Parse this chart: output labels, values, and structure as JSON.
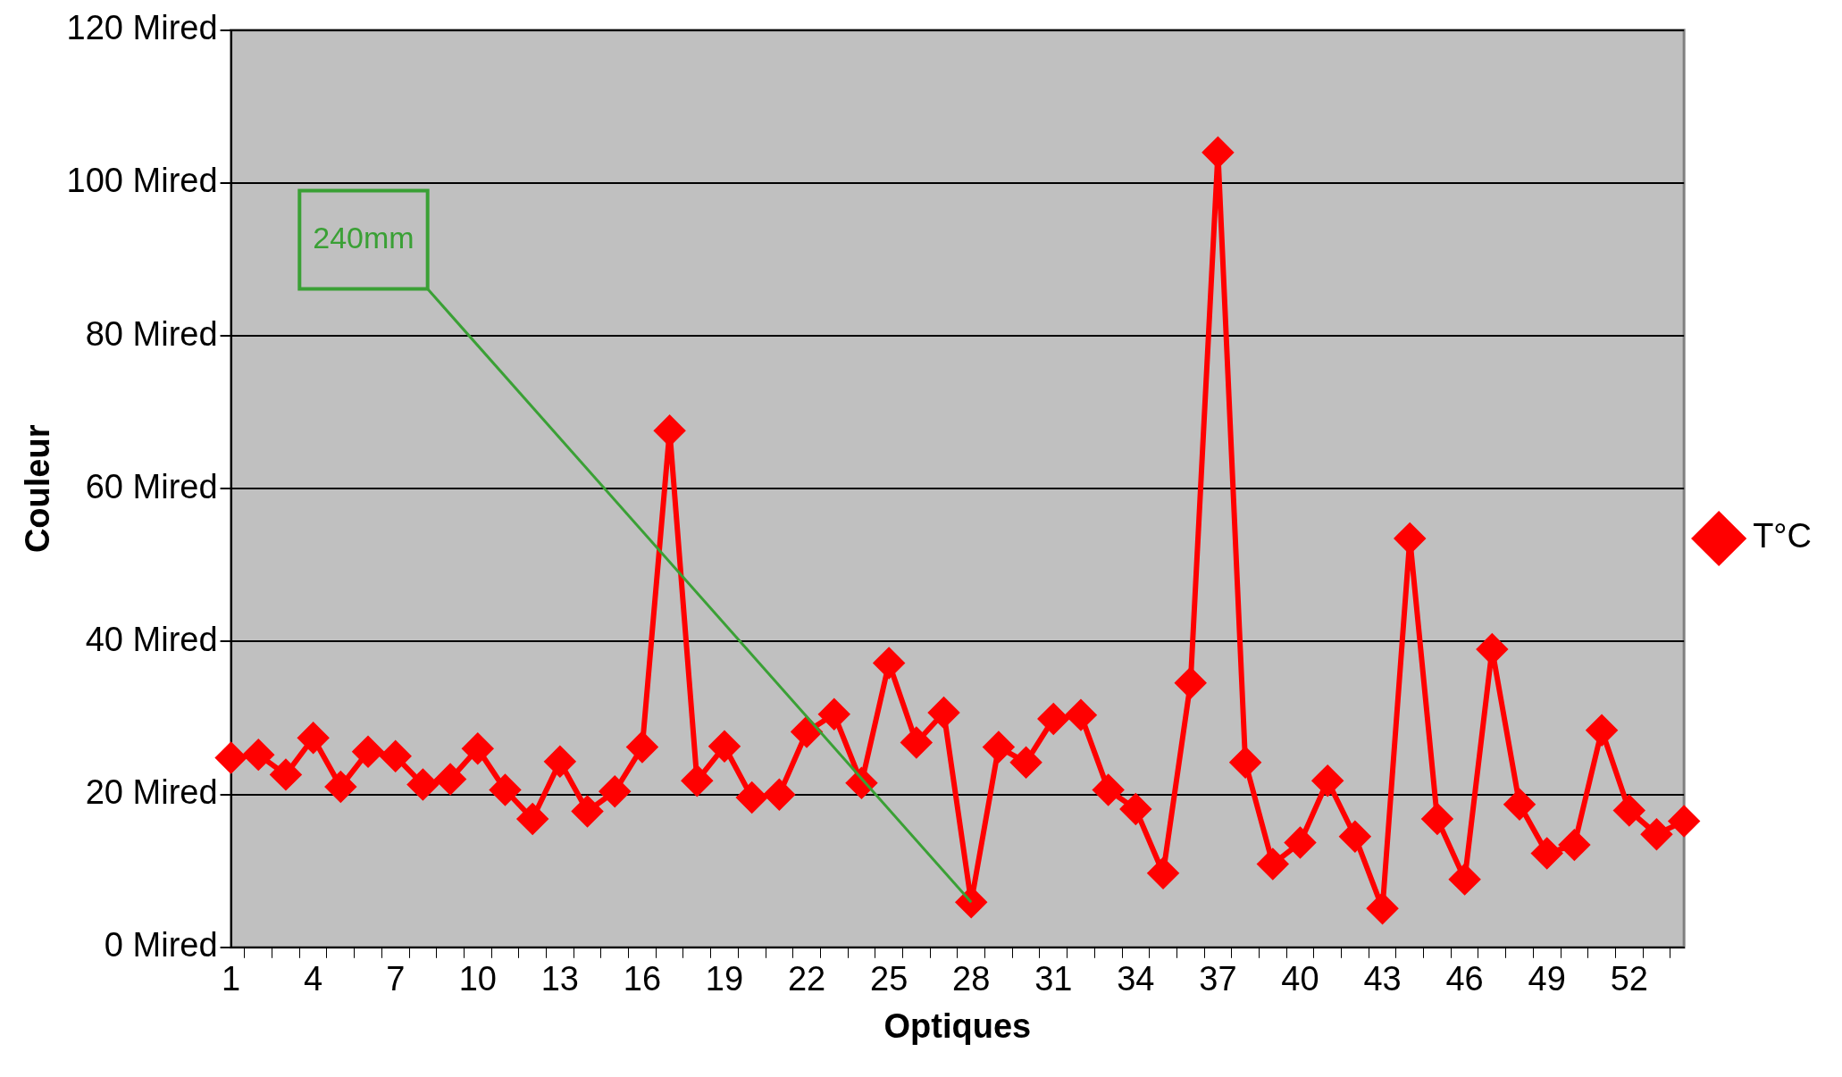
{
  "chart_data": {
    "type": "line",
    "xlabel": "Optiques",
    "ylabel": "Couleur",
    "categories": [
      "1",
      null,
      null,
      "4",
      null,
      null,
      "7",
      null,
      null,
      "10",
      null,
      null,
      "13",
      null,
      null,
      "16",
      null,
      null,
      "19",
      null,
      null,
      "22",
      null,
      null,
      "25",
      null,
      null,
      "28",
      null,
      null,
      "31",
      null,
      null,
      "34",
      null,
      null,
      "37",
      null,
      null,
      "40",
      null,
      null,
      "43",
      null,
      null,
      "46",
      null,
      null,
      "49",
      null,
      null,
      "52",
      null,
      null
    ],
    "series": [
      {
        "name": "T°C",
        "color": "#ff0000",
        "values": [
          24.8,
          25.2,
          22.6,
          27.4,
          21,
          25.6,
          25,
          21.3,
          22,
          26,
          20.6,
          16.8,
          24.3,
          17.8,
          20.4,
          26.2,
          67.6,
          21.8,
          26.3,
          19.6,
          20,
          28.2,
          30.5,
          21.5,
          37.2,
          26.8,
          30.7,
          5.9,
          26.2,
          24.2,
          29.9,
          30.4,
          20.6,
          18.1,
          9.7,
          34.6,
          104,
          24.2,
          10.9,
          13.7,
          21.8,
          14.5,
          5.1,
          53.5,
          16.8,
          8.9,
          39,
          18.7,
          12.3,
          13.4,
          28.4,
          17.9,
          14.8,
          16.5
        ]
      }
    ],
    "ylim": [
      0,
      120
    ],
    "yticks": [
      {
        "value": 0,
        "label": "0 Mired"
      },
      {
        "value": 20,
        "label": "20 Mired"
      },
      {
        "value": 40,
        "label": "40 Mired"
      },
      {
        "value": 60,
        "label": "60 Mired"
      },
      {
        "value": 80,
        "label": "80 Mired"
      },
      {
        "value": 100,
        "label": "100 Mired"
      },
      {
        "value": 120,
        "label": "120 Mired"
      }
    ],
    "grid": "y",
    "legend": "right",
    "marker": "diamond",
    "line_style": "solid",
    "annotations": [
      {
        "text": "240mm",
        "x": "28",
        "y": 5.9
      }
    ]
  }
}
